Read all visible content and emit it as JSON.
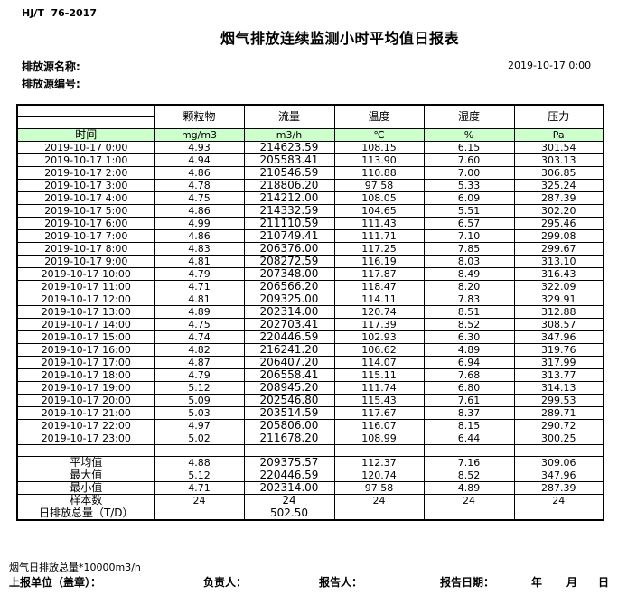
{
  "doc": {
    "standard": "HJ/T  76-2017",
    "title": "烟气排放连续监测小时平均值日报表",
    "source_name_label": "排放源名称:",
    "source_code_label": "排放源编号:",
    "report_datetime": "2019-10-17  0:00"
  },
  "table": {
    "time_header": "时间",
    "pollutant_headers": [
      "颗粒物",
      "流量",
      "温度",
      "湿度",
      "压力"
    ],
    "units": [
      "mg/m3",
      "m3/h",
      "℃",
      "%",
      "Pa"
    ],
    "rows": [
      {
        "time": "2019-10-17  0:00",
        "values": [
          "4.93",
          "214623.59",
          "108.15",
          "6.15",
          "301.54"
        ]
      },
      {
        "time": "2019-10-17  1:00",
        "values": [
          "4.94",
          "205583.41",
          "113.90",
          "7.60",
          "303.13"
        ]
      },
      {
        "time": "2019-10-17  2:00",
        "values": [
          "4.86",
          "210546.59",
          "110.88",
          "7.00",
          "306.85"
        ]
      },
      {
        "time": "2019-10-17  3:00",
        "values": [
          "4.78",
          "218806.20",
          "97.58",
          "5.33",
          "325.24"
        ]
      },
      {
        "time": "2019-10-17  4:00",
        "values": [
          "4.75",
          "214212.00",
          "108.05",
          "6.09",
          "287.39"
        ]
      },
      {
        "time": "2019-10-17  5:00",
        "values": [
          "4.86",
          "214332.59",
          "104.65",
          "5.51",
          "302.20"
        ]
      },
      {
        "time": "2019-10-17  6:00",
        "values": [
          "4.99",
          "211110.59",
          "111.43",
          "6.57",
          "295.46"
        ]
      },
      {
        "time": "2019-10-17  7:00",
        "values": [
          "4.86",
          "210749.41",
          "111.71",
          "7.10",
          "299.08"
        ]
      },
      {
        "time": "2019-10-17  8:00",
        "values": [
          "4.83",
          "206376.00",
          "117.25",
          "7.85",
          "299.67"
        ]
      },
      {
        "time": "2019-10-17  9:00",
        "values": [
          "4.81",
          "208272.59",
          "116.19",
          "8.03",
          "313.10"
        ]
      },
      {
        "time": "2019-10-17 10:00",
        "values": [
          "4.79",
          "207348.00",
          "117.87",
          "8.49",
          "316.43"
        ]
      },
      {
        "time": "2019-10-17 11:00",
        "values": [
          "4.71",
          "206566.20",
          "118.47",
          "8.20",
          "322.09"
        ]
      },
      {
        "time": "2019-10-17 12:00",
        "values": [
          "4.81",
          "209325.00",
          "114.11",
          "7.83",
          "329.91"
        ]
      },
      {
        "time": "2019-10-17 13:00",
        "values": [
          "4.89",
          "202314.00",
          "120.74",
          "8.51",
          "312.88"
        ]
      },
      {
        "time": "2019-10-17 14:00",
        "values": [
          "4.75",
          "202703.41",
          "117.39",
          "8.52",
          "308.57"
        ]
      },
      {
        "time": "2019-10-17 15:00",
        "values": [
          "4.74",
          "220446.59",
          "102.93",
          "6.30",
          "347.96"
        ]
      },
      {
        "time": "2019-10-17 16:00",
        "values": [
          "4.82",
          "216241.20",
          "106.62",
          "4.89",
          "319.76"
        ]
      },
      {
        "time": "2019-10-17 17:00",
        "values": [
          "4.87",
          "206407.20",
          "114.07",
          "6.94",
          "317.99"
        ]
      },
      {
        "time": "2019-10-17 18:00",
        "values": [
          "4.79",
          "206558.41",
          "115.11",
          "7.68",
          "313.77"
        ]
      },
      {
        "time": "2019-10-17 19:00",
        "values": [
          "5.12",
          "208945.20",
          "111.74",
          "6.80",
          "314.13"
        ]
      },
      {
        "time": "2019-10-17 20:00",
        "values": [
          "5.09",
          "202546.80",
          "115.43",
          "7.61",
          "299.53"
        ]
      },
      {
        "time": "2019-10-17 21:00",
        "values": [
          "5.03",
          "203514.59",
          "117.67",
          "8.37",
          "289.71"
        ]
      },
      {
        "time": "2019-10-17 22:00",
        "values": [
          "4.97",
          "205806.00",
          "116.07",
          "8.15",
          "290.72"
        ]
      },
      {
        "time": "2019-10-17 23:00",
        "values": [
          "5.02",
          "211678.20",
          "108.99",
          "6.44",
          "300.25"
        ]
      }
    ],
    "summary": [
      {
        "label": "平均值",
        "values": [
          "4.88",
          "209375.57",
          "112.37",
          "7.16",
          "309.06"
        ]
      },
      {
        "label": "最大值",
        "values": [
          "5.12",
          "220446.59",
          "120.74",
          "8.52",
          "347.96"
        ]
      },
      {
        "label": "最小值",
        "values": [
          "4.71",
          "202314.00",
          "97.58",
          "4.89",
          "287.39"
        ]
      },
      {
        "label": "样本数",
        "values": [
          "24",
          "24",
          "24",
          "24",
          "24"
        ]
      },
      {
        "label": "日排放总量（T/D）",
        "values": [
          "",
          "502.50",
          "",
          "",
          ""
        ]
      }
    ]
  },
  "footer": {
    "note": "烟气日排放总量*10000m3/h",
    "report_unit_label": "上报单位（盖章）：",
    "responsible_label": "负责人：",
    "reporter_label": "报告人：",
    "report_date_label": "报告日期：",
    "year_label": "年",
    "month_label": "月",
    "day_label": "日"
  },
  "colors": {
    "header_green": "#ccffcc",
    "border": "#000000"
  }
}
